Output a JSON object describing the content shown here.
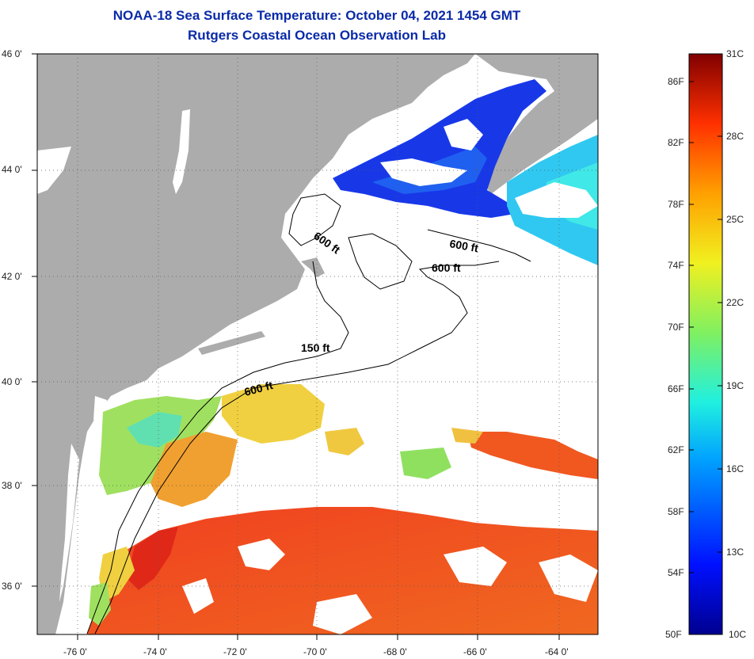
{
  "title_line1": "NOAA-18 Sea Surface Temperature:  October 04, 2021 1454 GMT",
  "title_line2": "Rutgers Coastal Ocean Observation Lab",
  "lat_labels": [
    "46 0'",
    "44 0'",
    "42 0'",
    "40 0'",
    "38 0'",
    "36 0'"
  ],
  "lon_labels": [
    "-76 0'",
    "-74 0'",
    "-72 0'",
    "-70 0'",
    "-68 0'",
    "-66 0'",
    "-64 0'"
  ],
  "contour_labels": {
    "c1": "600 ft",
    "c2": "600 ft",
    "c3": "600 ft",
    "c4": "150 ft",
    "c5": "600 ft"
  },
  "colorbar": {
    "f_labels": [
      "86F",
      "82F",
      "78F",
      "74F",
      "70F",
      "66F",
      "62F",
      "58F",
      "54F",
      "50F"
    ],
    "c_labels": [
      "31C",
      "28C",
      "25C",
      "22C",
      "19C",
      "16C",
      "13C",
      "10C"
    ]
  },
  "colors": {
    "land": "#acacac",
    "title": "#0a2aa8",
    "cold": "#1030e0",
    "cyan": "#20d8f0",
    "green": "#80e040",
    "yellow": "#f0e040",
    "orange": "#f07020",
    "red": "#e02010"
  }
}
